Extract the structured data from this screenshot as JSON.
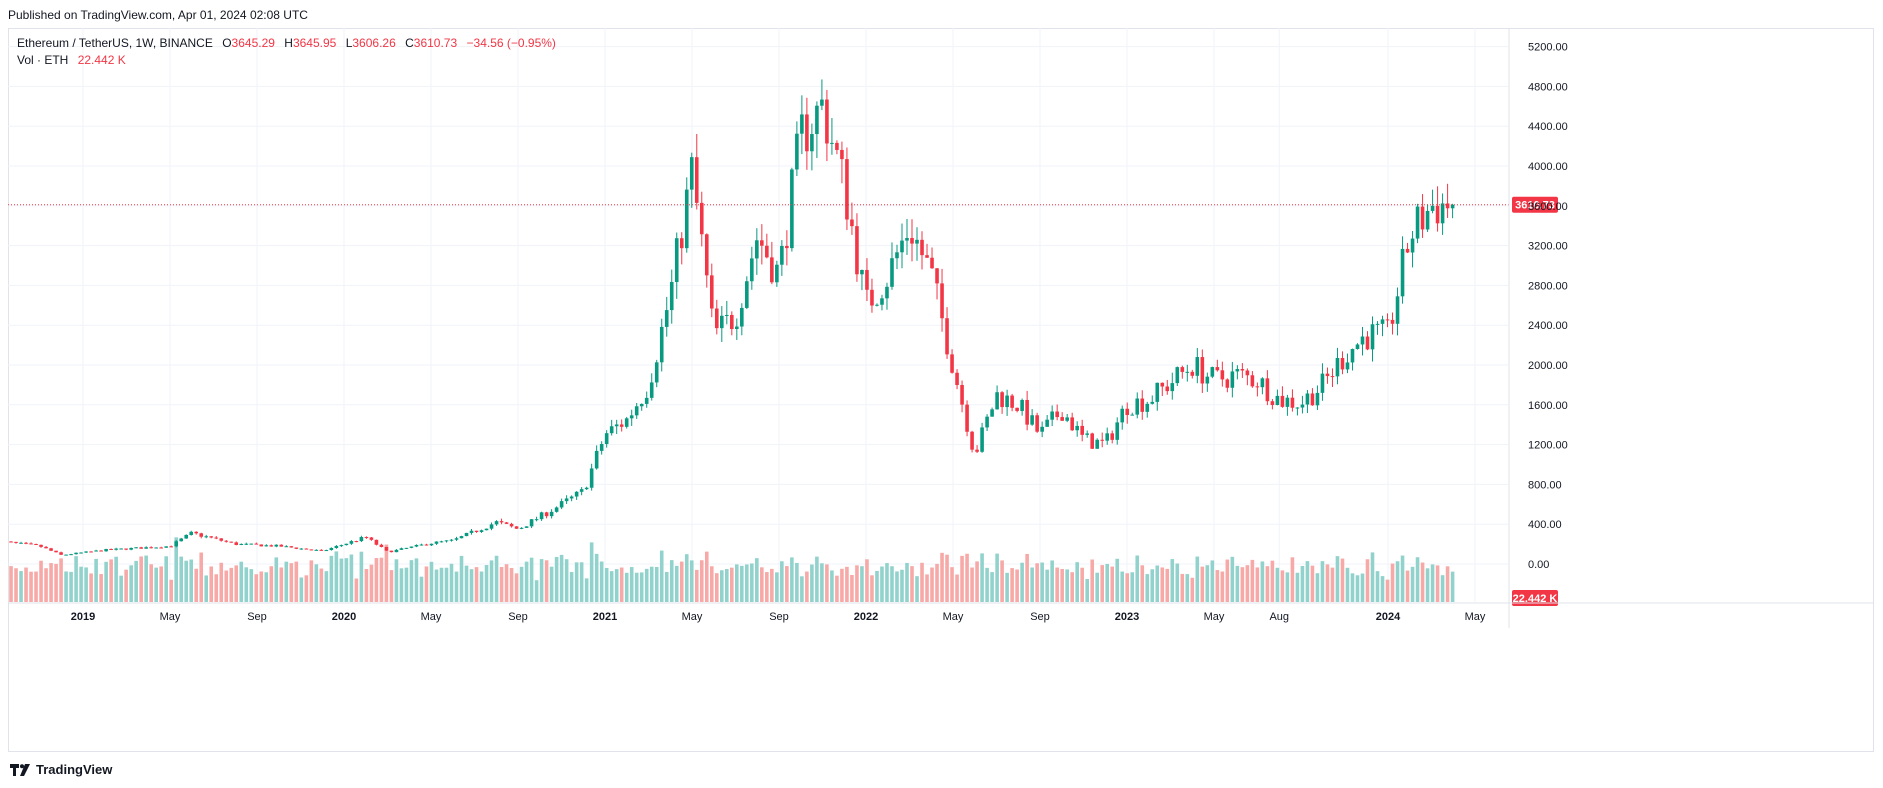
{
  "header": {
    "published": "Published on TradingView.com, Apr 01, 2024 02:08 UTC"
  },
  "legend": {
    "symbol": "Ethereum / TetherUS, 1W, BINANCE",
    "o_label": "O",
    "o_value": "3645.29",
    "h_label": "H",
    "h_value": "3645.95",
    "l_label": "L",
    "l_value": "3606.26",
    "c_label": "C",
    "c_value": "3610.73",
    "change": "−34.56 (−0.95%)",
    "vol_label": "Vol · ETH",
    "vol_value": "22.442 K"
  },
  "footer": {
    "brand": "TradingView",
    "logo_icon": "tradingview-logo-icon"
  },
  "colors": {
    "up": "#089981",
    "down": "#f23645",
    "up_vol": "#92d2cc",
    "down_vol": "#f7a9a7",
    "grid": "#f0f3fa",
    "axis_text": "#131722"
  },
  "chart_data": {
    "type": "candlestick",
    "timeframe": "1W",
    "y_ticks": [
      "5200.00",
      "4800.00",
      "4400.00",
      "4000.00",
      "3600.00",
      "3200.00",
      "2800.00",
      "2400.00",
      "2000.00",
      "1600.00",
      "1200.00",
      "800.00",
      "400.00",
      "0.00"
    ],
    "ylim": [
      0,
      5200
    ],
    "x_labels": [
      {
        "label": "2019",
        "bold": true,
        "t": "2019-01"
      },
      {
        "label": "May",
        "bold": false,
        "t": "2019-05"
      },
      {
        "label": "Sep",
        "bold": false,
        "t": "2019-09"
      },
      {
        "label": "2020",
        "bold": true,
        "t": "2020-01"
      },
      {
        "label": "May",
        "bold": false,
        "t": "2020-05"
      },
      {
        "label": "Sep",
        "bold": false,
        "t": "2020-09"
      },
      {
        "label": "2021",
        "bold": true,
        "t": "2021-01"
      },
      {
        "label": "May",
        "bold": false,
        "t": "2021-05"
      },
      {
        "label": "Sep",
        "bold": false,
        "t": "2021-09"
      },
      {
        "label": "2022",
        "bold": true,
        "t": "2022-01"
      },
      {
        "label": "May",
        "bold": false,
        "t": "2022-05"
      },
      {
        "label": "Sep",
        "bold": false,
        "t": "2022-09"
      },
      {
        "label": "2023",
        "bold": true,
        "t": "2023-01"
      },
      {
        "label": "May",
        "bold": false,
        "t": "2023-05"
      },
      {
        "label": "Aug",
        "bold": false,
        "t": "2023-08"
      },
      {
        "label": "2024",
        "bold": true,
        "t": "2024-01"
      },
      {
        "label": "May",
        "bold": false,
        "t": "2024-05"
      }
    ],
    "last_price": 3610.73,
    "last_price_label": "3610.73",
    "last_volume_label": "22.442 K",
    "close_path": [
      [
        "2018-09",
        230
      ],
      [
        "2018-11",
        180
      ],
      [
        "2018-12",
        90
      ],
      [
        "2019-02",
        140
      ],
      [
        "2019-05",
        180
      ],
      [
        "2019-06",
        310
      ],
      [
        "2019-08",
        200
      ],
      [
        "2019-10",
        180
      ],
      [
        "2019-12",
        130
      ],
      [
        "2020-02",
        270
      ],
      [
        "2020-03",
        120
      ],
      [
        "2020-05",
        210
      ],
      [
        "2020-06",
        235
      ],
      [
        "2020-08",
        420
      ],
      [
        "2020-09",
        350
      ],
      [
        "2020-11",
        600
      ],
      [
        "2020-12",
        730
      ],
      [
        "2021-01",
        1300
      ],
      [
        "2021-02",
        1450
      ],
      [
        "2021-03",
        1800
      ],
      [
        "2021-04",
        2700
      ],
      [
        "2021-05",
        3950
      ],
      [
        "2021-06",
        2300
      ],
      [
        "2021-07",
        2500
      ],
      [
        "2021-08",
        3300
      ],
      [
        "2021-09",
        2900
      ],
      [
        "2021-10",
        4300
      ],
      [
        "2021-11",
        4600
      ],
      [
        "2021-12",
        3800
      ],
      [
        "2022-01",
        2600
      ],
      [
        "2022-02",
        2900
      ],
      [
        "2022-03",
        3400
      ],
      [
        "2022-04",
        2900
      ],
      [
        "2022-05",
        2000
      ],
      [
        "2022-06",
        1100
      ],
      [
        "2022-07",
        1700
      ],
      [
        "2022-08",
        1600
      ],
      [
        "2022-09",
        1300
      ],
      [
        "2022-10",
        1550
      ],
      [
        "2022-11",
        1250
      ],
      [
        "2022-12",
        1200
      ],
      [
        "2023-01",
        1600
      ],
      [
        "2023-02",
        1650
      ],
      [
        "2023-04",
        2000
      ],
      [
        "2023-05",
        1850
      ],
      [
        "2023-06",
        1900
      ],
      [
        "2023-07",
        1850
      ],
      [
        "2023-08",
        1650
      ],
      [
        "2023-09",
        1620
      ],
      [
        "2023-10",
        1800
      ],
      [
        "2023-11",
        2100
      ],
      [
        "2023-12",
        2300
      ],
      [
        "2024-01",
        2300
      ],
      [
        "2024-02",
        3300
      ],
      [
        "2024-03",
        3600
      ],
      [
        "2024-03-31",
        3610.73
      ]
    ],
    "volume_scale_max": 1.0
  }
}
